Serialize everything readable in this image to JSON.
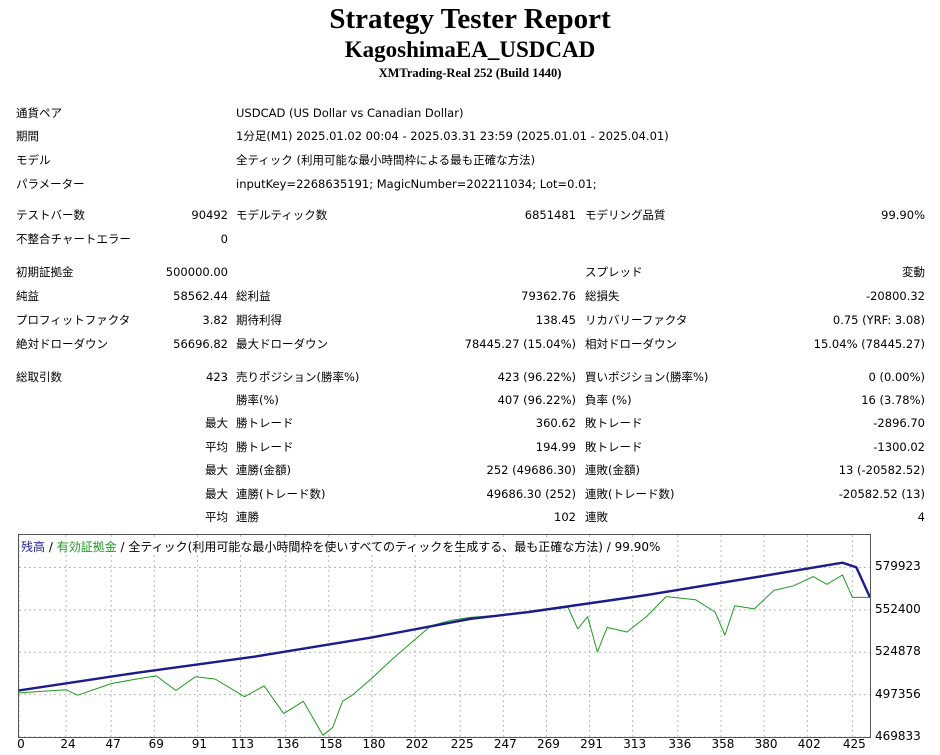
{
  "header": {
    "title": "Strategy Tester Report",
    "ea_name": "KagoshimaEA_USDCAD",
    "server": "XMTrading-Real 252 (Build 1440)"
  },
  "info": {
    "pair_label": "通貨ペア",
    "pair_value": "USDCAD (US Dollar vs Canadian Dollar)",
    "period_label": "期間",
    "period_value": "1分足(M1) 2025.01.02 00:04 - 2025.03.31 23:59 (2025.01.01 - 2025.04.01)",
    "model_label": "モデル",
    "model_value": "全ティック (利用可能な最小時間枠による最も正確な方法)",
    "params_label": "パラメーター",
    "params_value": "inputKey=2268635191; MagicNumber=202211034; Lot=0.01;"
  },
  "stats": {
    "bars_label": "テストバー数",
    "bars_value": "90492",
    "ticks_label": "モデルティック数",
    "ticks_value": "6851481",
    "quality_label": "モデリング品質",
    "quality_value": "99.90%",
    "mismatch_label": "不整合チャートエラー",
    "mismatch_value": "0",
    "deposit_label": "初期証拠金",
    "deposit_value": "500000.00",
    "spread_label": "スプレッド",
    "spread_value": "変動",
    "netprofit_label": "純益",
    "netprofit_value": "58562.44",
    "grossprofit_label": "総利益",
    "grossprofit_value": "79362.76",
    "grossloss_label": "総損失",
    "grossloss_value": "-20800.32",
    "pf_label": "プロフィットファクタ",
    "pf_value": "3.82",
    "expected_label": "期待利得",
    "expected_value": "138.45",
    "recovery_label": "リカバリーファクタ",
    "recovery_value": "0.75 (YRF: 3.08)",
    "absdd_label": "絶対ドローダウン",
    "absdd_value": "56696.82",
    "maxdd_label": "最大ドローダウン",
    "maxdd_value": "78445.27 (15.04%)",
    "reldd_label": "相対ドローダウン",
    "reldd_value": "15.04% (78445.27)",
    "trades_label": "総取引数",
    "trades_value": "423",
    "short_label": "売りポジション(勝率%)",
    "short_value": "423 (96.22%)",
    "long_label": "買いポジション(勝率%)",
    "long_value": "0 (0.00%)",
    "winrate_label": "勝率(%)",
    "winrate_value": "407 (96.22%)",
    "lossrate_label": "負率 (%)",
    "lossrate_value": "16 (3.78%)",
    "max_label": "最大",
    "avg_label": "平均",
    "bestwin_label": "勝トレード",
    "bestwin_value": "360.62",
    "worstloss_label": "敗トレード",
    "worstloss_value": "-2896.70",
    "avgwin_label": "勝トレード",
    "avgwin_value": "194.99",
    "avgloss_label": "敗トレード",
    "avgloss_value": "-1300.02",
    "maxconswins_label": "連勝(金額)",
    "maxconswins_value": "252 (49686.30)",
    "maxconsloss_label": "連敗(金額)",
    "maxconsloss_value": "13 (-20582.52)",
    "maxconsprofit_label": "連勝(トレード数)",
    "maxconsprofit_value": "49686.30 (252)",
    "maxconslossamt_label": "連敗(トレード数)",
    "maxconslossamt_value": "-20582.52 (13)",
    "avgconswins_label": "連勝",
    "avgconswins_value": "102",
    "avgconsloss_label": "連敗",
    "avgconsloss_value": "4"
  },
  "legend": {
    "balance": "残高",
    "sep": " / ",
    "equity": "有効証拠金",
    "rest": " / 全ティック(利用可能な最小時間枠を使いすべてのティックを生成する、最も正確な方法) / 99.90%"
  },
  "colors": {
    "balance": "#1c1c8c",
    "equity": "#1e9a1e",
    "grid": "#b8b8b8"
  },
  "chart_data": {
    "type": "line",
    "x_ticks": [
      "0",
      "24",
      "47",
      "69",
      "91",
      "113",
      "136",
      "158",
      "180",
      "202",
      "225",
      "247",
      "269",
      "291",
      "313",
      "336",
      "358",
      "380",
      "402",
      "425"
    ],
    "y_ticks": [
      "579923",
      "552400",
      "524878",
      "497356",
      "469833"
    ],
    "xlim": [
      0,
      434
    ],
    "ylim": [
      469833,
      601000
    ],
    "grid": true,
    "series": [
      {
        "name": "残高",
        "x": [
          0,
          60,
          120,
          180,
          230,
          260,
          320,
          380,
          420,
          427,
          434
        ],
        "y": [
          500000,
          511500,
          522000,
          534500,
          546500,
          551000,
          562000,
          574500,
          583000,
          580000,
          560500
        ]
      },
      {
        "name": "有効証拠金",
        "x": [
          0,
          24,
          30,
          47,
          60,
          70,
          80,
          90,
          100,
          115,
          125,
          135,
          145,
          150,
          155,
          160,
          165,
          170,
          180,
          190,
          200,
          210,
          220,
          230,
          245,
          260,
          280,
          285,
          290,
          295,
          300,
          310,
          320,
          330,
          345,
          355,
          360,
          365,
          375,
          385,
          395,
          405,
          412,
          420,
          425,
          434
        ],
        "y": [
          498500,
          500500,
          497000,
          504500,
          507500,
          509500,
          500000,
          509000,
          507500,
          496000,
          503000,
          485000,
          493000,
          482000,
          471000,
          476000,
          493000,
          497000,
          508000,
          520000,
          531000,
          542000,
          545500,
          547500,
          549000,
          551000,
          554000,
          540000,
          548000,
          525000,
          541000,
          538000,
          548000,
          561000,
          559000,
          551000,
          536000,
          555000,
          553000,
          565000,
          568000,
          574000,
          569000,
          575000,
          560500,
          560500
        ]
      }
    ]
  }
}
